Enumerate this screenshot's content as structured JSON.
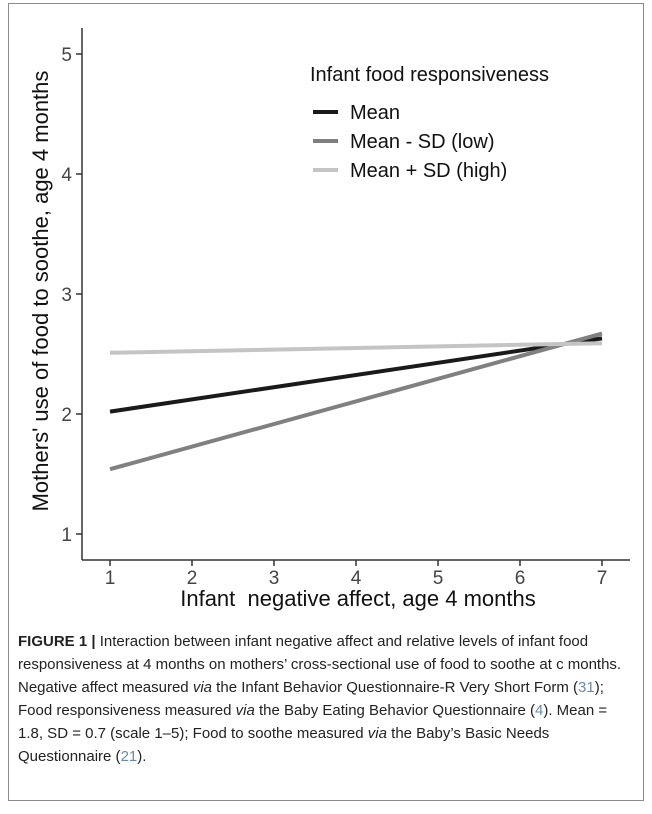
{
  "chart_data": {
    "type": "line",
    "xlabel": "Infant  negative affect, age 4 months",
    "ylabel": "Mothers' use of food to soothe, age 4 months",
    "xlim": [
      1,
      7
    ],
    "ylim": [
      1,
      5
    ],
    "x_ticks": [
      "1",
      "2",
      "3",
      "4",
      "5",
      "6",
      "7"
    ],
    "y_ticks": [
      "1",
      "2",
      "3",
      "4",
      "5"
    ],
    "grid": false,
    "legend": {
      "title": "Infant food responsiveness",
      "placement": "top-right"
    },
    "series": [
      {
        "name": "Mean",
        "color": "#1a1a1a",
        "x": [
          1,
          7
        ],
        "y": [
          2.02,
          2.63
        ]
      },
      {
        "name": "Mean - SD (low)",
        "color": "#808080",
        "x": [
          1,
          7
        ],
        "y": [
          1.54,
          2.67
        ]
      },
      {
        "name": "Mean + SD (high)",
        "color": "#c4c4c4",
        "x": [
          1,
          7
        ],
        "y": [
          2.51,
          2.59
        ]
      }
    ]
  },
  "caption": {
    "lead": "FIGURE 1 |",
    "seg1": " Interaction between infant negative affect and relative levels of infant food responsiveness at 4 months on mothers’ cross-sectional use of food to soothe at c months. Negative affect measured ",
    "via1": "via",
    "seg2": " the Infant Behavior Questionnaire-R Very Short Form (",
    "ref1": "31",
    "seg3": "); Food responsiveness measured ",
    "via2": "via",
    "seg4": " the Baby Eating Behavior Questionnaire (",
    "ref2": "4",
    "seg5": "). Mean = 1.8, SD = 0.7 (scale 1–5); Food to soothe measured ",
    "via3": "via",
    "seg6": " the Baby’s Basic Needs Questionnaire (",
    "ref3": "21",
    "seg7": ")."
  }
}
